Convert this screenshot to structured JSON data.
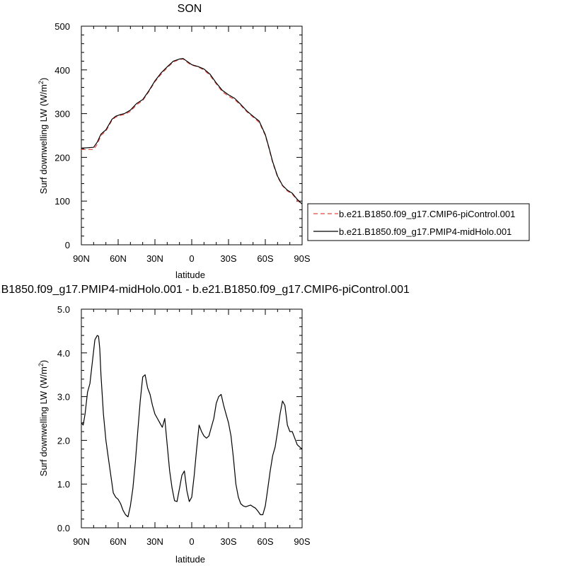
{
  "chart_data": [
    {
      "type": "line",
      "title": "SON",
      "xlabel": "latitude",
      "ylabel": "Surf downwelling LW (W/m",
      "ylabel_sup": "2",
      "ylabel_end": ")",
      "xlim": [
        90,
        -90
      ],
      "ylim": [
        0,
        500
      ],
      "x_ticks": [
        90,
        60,
        30,
        0,
        -30,
        -60,
        -90
      ],
      "x_tick_labels": [
        "90N",
        "60N",
        "30N",
        "0",
        "30S",
        "60S",
        "90S"
      ],
      "y_ticks": [
        0,
        100,
        200,
        300,
        400,
        500
      ],
      "y_tick_labels": [
        "0",
        "100",
        "200",
        "300",
        "400",
        "500"
      ],
      "grid": false,
      "legend": "right",
      "series": [
        {
          "name": "b.e21.B1850.f09_g17.CMIP6-piControl.001",
          "color": "#e8473f",
          "style": "dashed",
          "x": [
            90,
            85,
            80,
            77,
            74,
            70,
            65,
            62,
            58,
            55,
            50,
            45,
            40,
            35,
            30,
            25,
            20,
            15,
            10,
            7,
            5,
            2,
            0,
            -5,
            -10,
            -15,
            -20,
            -25,
            -30,
            -35,
            -40,
            -45,
            -50,
            -55,
            -60,
            -63,
            -66,
            -70,
            -74,
            -78,
            -82,
            -86,
            -90
          ],
          "y": [
            218,
            218,
            218,
            230,
            250,
            260,
            285,
            292,
            296,
            298,
            305,
            320,
            330,
            350,
            373,
            390,
            405,
            418,
            424,
            425,
            420,
            414,
            411,
            407,
            400,
            387,
            368,
            350,
            340,
            332,
            319,
            304,
            292,
            280,
            250,
            220,
            188,
            155,
            135,
            123,
            116,
            102,
            92
          ]
        },
        {
          "name": "b.e21.B1850.f09_g17.PMIP4-midHolo.001",
          "color": "#000000",
          "style": "solid",
          "x": [
            90,
            85,
            80,
            77,
            74,
            70,
            65,
            62,
            58,
            55,
            50,
            45,
            40,
            35,
            30,
            25,
            20,
            15,
            10,
            7,
            5,
            2,
            0,
            -5,
            -10,
            -15,
            -20,
            -25,
            -30,
            -35,
            -40,
            -45,
            -50,
            -55,
            -60,
            -63,
            -66,
            -70,
            -74,
            -78,
            -82,
            -86,
            -90
          ],
          "y": [
            221,
            222,
            223,
            235,
            253,
            263,
            287,
            294,
            298,
            300,
            308,
            323,
            332,
            352,
            375,
            393,
            407,
            420,
            425,
            426,
            422,
            416,
            412,
            408,
            402,
            390,
            370,
            353,
            343,
            335,
            321,
            306,
            294,
            283,
            252,
            222,
            190,
            157,
            136,
            125,
            118,
            104,
            93
          ]
        }
      ]
    },
    {
      "type": "line",
      "title": "b.e21.B1850.f09_g17.PMIP4-midHolo.001 - b.e21.B1850.f09_g17.CMIP6-piControl.001",
      "xlabel": "latitude",
      "ylabel": "Surf downwelling LW (W/m",
      "ylabel_sup": "2",
      "ylabel_end": ")",
      "xlim": [
        90,
        -90
      ],
      "ylim": [
        0,
        5
      ],
      "x_ticks": [
        90,
        60,
        30,
        0,
        -30,
        -60,
        -90
      ],
      "x_tick_labels": [
        "90N",
        "60N",
        "30N",
        "0",
        "30S",
        "60S",
        "90S"
      ],
      "y_ticks": [
        0,
        1,
        2,
        3,
        4,
        5
      ],
      "y_tick_labels": [
        "0.0",
        "1.0",
        "2.0",
        "3.0",
        "4.0",
        "5.0"
      ],
      "grid": false,
      "series": [
        {
          "color": "#000000",
          "style": "solid",
          "x": [
            90,
            88.5,
            87,
            85,
            83,
            81,
            79,
            77,
            76,
            75,
            74,
            72,
            70,
            68,
            66,
            64,
            62,
            60,
            58,
            56,
            54,
            52,
            50,
            48,
            46,
            44,
            42,
            40,
            38,
            36,
            34,
            32,
            30,
            28,
            26,
            24,
            22,
            20,
            18,
            16,
            14,
            12,
            10,
            8,
            6,
            4,
            2,
            0,
            -2,
            -4,
            -6,
            -8,
            -10,
            -12,
            -14,
            -16,
            -18,
            -20,
            -22,
            -24,
            -26,
            -28,
            -30,
            -32,
            -34,
            -36,
            -38,
            -40,
            -42,
            -44,
            -46,
            -48,
            -50,
            -52,
            -54,
            -56,
            -58,
            -60,
            -62,
            -64,
            -66,
            -68,
            -70,
            -72,
            -74,
            -76,
            -78,
            -80,
            -82,
            -84,
            -86,
            -88,
            -90
          ],
          "y": [
            2.4,
            2.35,
            2.6,
            3.1,
            3.3,
            3.8,
            4.3,
            4.4,
            4.38,
            4.1,
            3.5,
            2.6,
            2.0,
            1.6,
            1.2,
            0.8,
            0.7,
            0.65,
            0.55,
            0.4,
            0.3,
            0.25,
            0.5,
            0.9,
            1.5,
            2.2,
            2.9,
            3.45,
            3.5,
            3.2,
            3.05,
            2.8,
            2.6,
            2.5,
            2.4,
            2.3,
            2.5,
            1.9,
            1.3,
            0.9,
            0.62,
            0.6,
            0.9,
            1.2,
            1.3,
            0.85,
            0.6,
            0.7,
            1.2,
            1.8,
            2.35,
            2.2,
            2.1,
            2.05,
            2.1,
            2.3,
            2.5,
            2.85,
            3.0,
            3.05,
            2.8,
            2.6,
            2.4,
            2.1,
            1.6,
            1.0,
            0.7,
            0.55,
            0.5,
            0.48,
            0.5,
            0.52,
            0.48,
            0.45,
            0.38,
            0.3,
            0.3,
            0.5,
            0.9,
            1.3,
            1.65,
            1.85,
            2.2,
            2.6,
            2.9,
            2.8,
            2.35,
            2.2,
            2.2,
            2.05,
            1.9,
            1.85,
            1.8
          ]
        }
      ]
    }
  ]
}
